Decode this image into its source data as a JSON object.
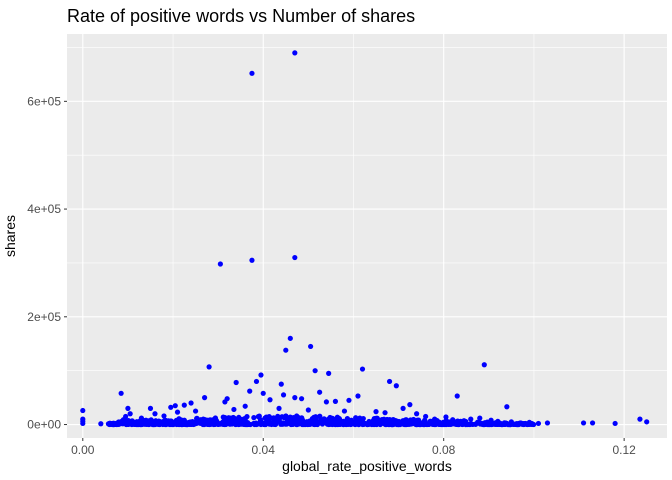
{
  "chart_data": {
    "type": "scatter",
    "title": "Rate of positive words vs Number of shares",
    "xlabel": "global_rate_positive_words",
    "ylabel": "shares",
    "xlim": [
      -0.0035,
      0.1295
    ],
    "ylim": [
      -25000,
      725000
    ],
    "x_ticks": [
      0.0,
      0.04,
      0.08,
      0.12
    ],
    "x_tick_labels": [
      "0.00",
      "0.04",
      "0.08",
      "0.12"
    ],
    "y_ticks": [
      0,
      200000,
      400000,
      600000
    ],
    "y_tick_labels": [
      "0e+00",
      "2e+05",
      "4e+05",
      "6e+05"
    ],
    "grid": true,
    "legend": "none",
    "point_color": "#0000ff",
    "panel_background": "#ebebeb",
    "points": [
      [
        0.047,
        690000
      ],
      [
        0.0375,
        652000
      ],
      [
        0.047,
        310000
      ],
      [
        0.0375,
        305000
      ],
      [
        0.0305,
        298000
      ],
      [
        0.046,
        160000
      ],
      [
        0.0505,
        145000
      ],
      [
        0.045,
        138000
      ],
      [
        0.0545,
        95000
      ],
      [
        0.0515,
        100000
      ],
      [
        0.0395,
        92000
      ],
      [
        0.062,
        103000
      ],
      [
        0.089,
        111000
      ],
      [
        0.028,
        107000
      ],
      [
        0.0385,
        80000
      ],
      [
        0.034,
        78000
      ],
      [
        0.068,
        80000
      ],
      [
        0.0695,
        72000
      ],
      [
        0.044,
        75000
      ],
      [
        0.037,
        62000
      ],
      [
        0.04,
        58000
      ],
      [
        0.047,
        50000
      ],
      [
        0.0445,
        55000
      ],
      [
        0.0415,
        46000
      ],
      [
        0.0525,
        60000
      ],
      [
        0.061,
        53000
      ],
      [
        0.083,
        53000
      ],
      [
        0.0085,
        58000
      ],
      [
        0.027,
        50000
      ],
      [
        0.032,
        48000
      ],
      [
        0.0315,
        42000
      ],
      [
        0.056,
        43000
      ],
      [
        0.059,
        45000
      ],
      [
        0.054,
        42000
      ],
      [
        0.0725,
        37000
      ],
      [
        0.0485,
        48000
      ],
      [
        0.071,
        30000
      ],
      [
        0.094,
        33000
      ],
      [
        0.0225,
        36000
      ],
      [
        0.0195,
        32000
      ],
      [
        0.0205,
        35000
      ],
      [
        0.024,
        40000
      ],
      [
        0.015,
        30000
      ],
      [
        0.0435,
        30000
      ],
      [
        0.1235,
        10000
      ],
      [
        0.125,
        5000
      ],
      [
        0.118,
        2000
      ],
      [
        0.113,
        3000
      ],
      [
        0.111,
        3000
      ],
      [
        0.103,
        3000
      ],
      [
        0.101,
        2000
      ],
      [
        0.0,
        26000
      ],
      [
        0.0,
        10000
      ],
      [
        0.0,
        6000
      ],
      [
        0.0,
        2000
      ],
      [
        0.004,
        1500
      ],
      [
        0.006,
        2500
      ],
      [
        0.0075,
        2000
      ],
      [
        0.009,
        9000
      ],
      [
        0.01,
        30000
      ],
      [
        0.0105,
        20000
      ],
      [
        0.0095,
        15000
      ],
      [
        0.012,
        5000
      ],
      [
        0.013,
        12000
      ],
      [
        0.014,
        8000
      ],
      [
        0.016,
        20000
      ],
      [
        0.018,
        16000
      ],
      [
        0.021,
        23000
      ],
      [
        0.025,
        25000
      ],
      [
        0.0335,
        28000
      ],
      [
        0.036,
        34000
      ],
      [
        0.05,
        27000
      ],
      [
        0.058,
        25000
      ],
      [
        0.065,
        24000
      ],
      [
        0.067,
        22000
      ],
      [
        0.074,
        20000
      ],
      [
        0.076,
        15000
      ],
      [
        0.078,
        10000
      ],
      [
        0.0805,
        14000
      ],
      [
        0.082,
        9000
      ],
      [
        0.0845,
        7000
      ],
      [
        0.086,
        10000
      ],
      [
        0.088,
        12000
      ],
      [
        0.0905,
        8000
      ],
      [
        0.092,
        6000
      ],
      [
        0.095,
        5000
      ],
      [
        0.097,
        3000
      ],
      [
        0.099,
        4000
      ]
    ],
    "dense_band": {
      "x_range": [
        0.0055,
        0.1
      ],
      "y_range": [
        0,
        18000
      ],
      "count": 900
    }
  }
}
